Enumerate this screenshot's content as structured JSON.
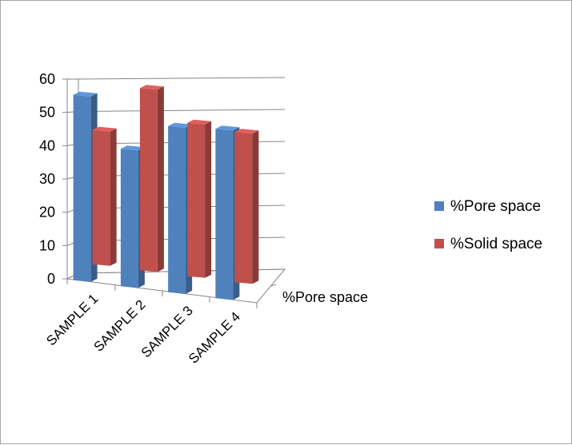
{
  "chart_data": {
    "type": "bar",
    "style": "3d-clustered-column",
    "categories": [
      "SAMPLE 1",
      "SAMPLE 2",
      "SAMPLE 3",
      "SAMPLE 4"
    ],
    "series": [
      {
        "name": "%Pore space",
        "values": [
          58,
          43,
          52,
          53
        ],
        "color": "#4f81bd"
      },
      {
        "name": "%Solid space",
        "values": [
          42,
          57,
          48,
          47
        ],
        "color": "#c0504d"
      }
    ],
    "ylim": [
      0,
      60
    ],
    "yticks": [
      "0",
      "10",
      "20",
      "30",
      "40",
      "50",
      "60"
    ],
    "depth_label": "%Pore space",
    "grid": true,
    "legend_position": "right"
  }
}
